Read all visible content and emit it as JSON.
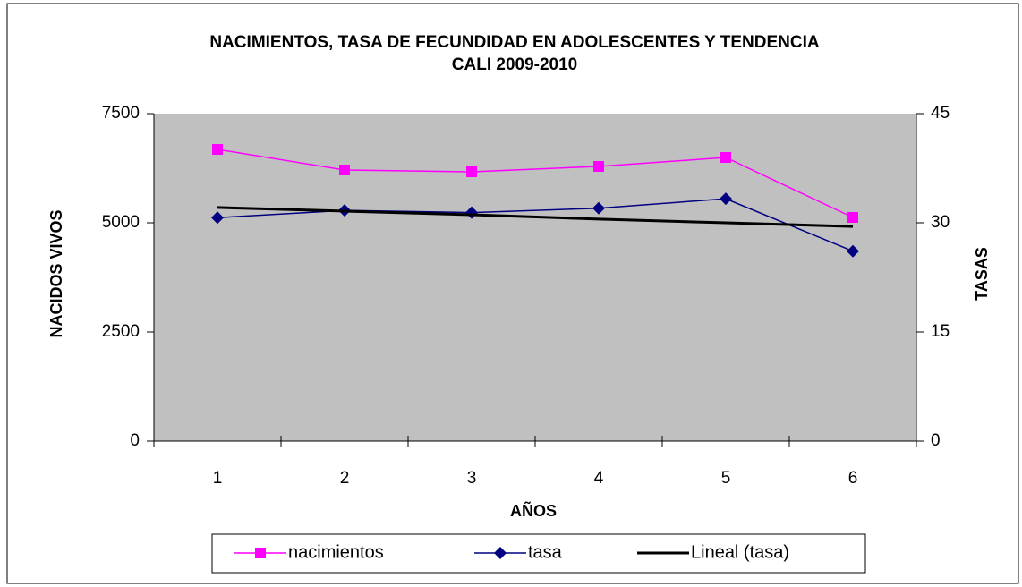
{
  "chart_data": {
    "type": "line",
    "title": [
      "NACIMIENTOS, TASA DE FECUNDIDAD EN ADOLESCENTES Y TENDENCIA",
      "CALI 2009-2010"
    ],
    "x_label": "AÑOS",
    "y_label": "NACIDOS VIVOS",
    "y2_label": "TASAS",
    "categories": [
      "1",
      "2",
      "3",
      "4",
      "5",
      "6"
    ],
    "ylim": [
      0,
      7500
    ],
    "yticks": [
      0,
      2500,
      5000,
      7500
    ],
    "y2lim": [
      0,
      45
    ],
    "y2ticks": [
      0,
      15,
      30,
      45
    ],
    "plot_background": "#c0c0c0",
    "legend": "bottom",
    "series": [
      {
        "name": "nacimientos",
        "color": "#ff00ff",
        "marker": "square",
        "values": [
          6680,
          6209,
          6168,
          6291,
          6496,
          5123
        ]
      },
      {
        "name": "tasa",
        "color": "#000080",
        "marker": "diamond",
        "axis": "y2",
        "values": [
          30.7,
          31.7,
          31.4,
          32.0,
          33.3,
          26.1
        ]
      },
      {
        "name": "Lineal (tasa)",
        "color": "#000000",
        "axis": "y2",
        "values": [
          32.1,
          31.6,
          31.1,
          30.5,
          30.0,
          29.5
        ]
      }
    ]
  }
}
